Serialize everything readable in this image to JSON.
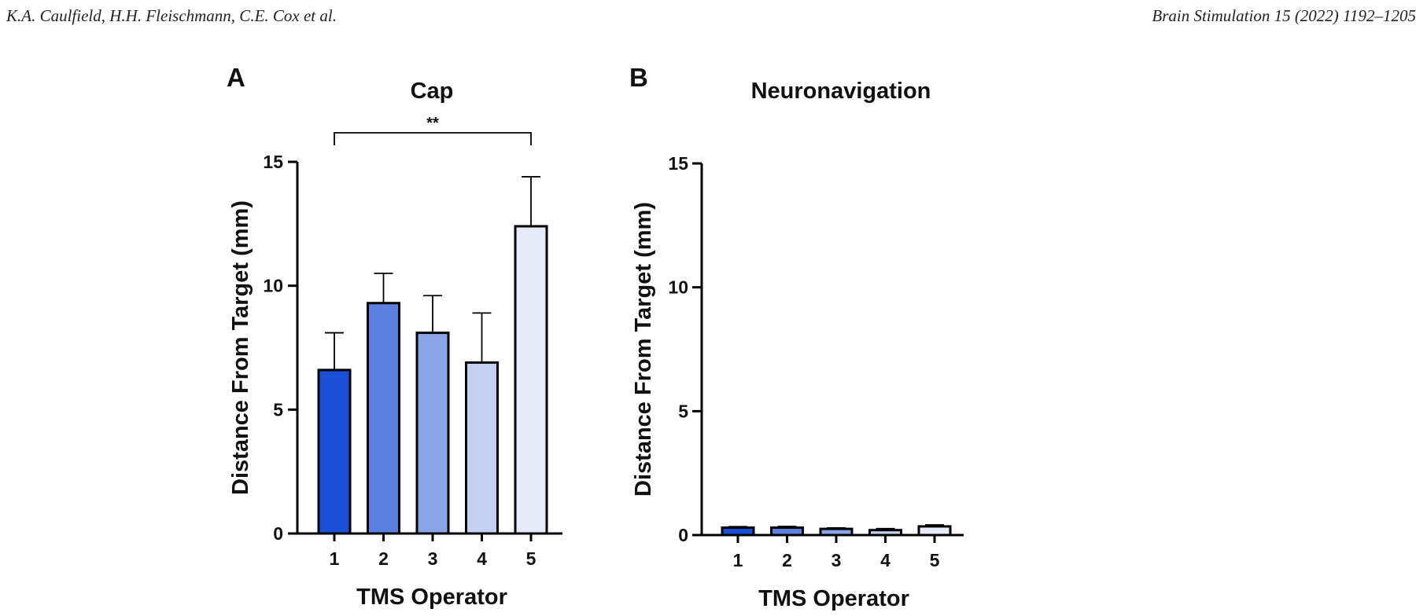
{
  "header": {
    "authors": "K.A. Caulfield, H.H. Fleischmann, C.E. Cox et al.",
    "journal": "Brain Stimulation 15 (2022) 1192–1205"
  },
  "colors": [
    "#1a4fd6",
    "#5b80e0",
    "#8ba4e8",
    "#c3d0f2",
    "#e5ebf9"
  ],
  "chart_data": [
    {
      "type": "bar",
      "panel": "A",
      "title": "Cap",
      "xlabel": "TMS Operator",
      "ylabel": "Distance From Target (mm)",
      "categories": [
        "1",
        "2",
        "3",
        "4",
        "5"
      ],
      "values": [
        6.6,
        9.3,
        8.1,
        6.9,
        12.4
      ],
      "errors": [
        1.5,
        1.2,
        1.5,
        2.0,
        2.0
      ],
      "ylim": [
        0,
        15
      ],
      "yticks": [
        0,
        5,
        10,
        15
      ],
      "significance": {
        "from": "1",
        "to": "5",
        "label": "**"
      }
    },
    {
      "type": "bar",
      "panel": "B",
      "title": "Neuronavigation",
      "xlabel": "TMS Operator",
      "ylabel": "Distance From Target (mm)",
      "categories": [
        "1",
        "2",
        "3",
        "4",
        "5"
      ],
      "values": [
        0.3,
        0.3,
        0.25,
        0.2,
        0.35
      ],
      "errors": [
        0.04,
        0.05,
        0.04,
        0.06,
        0.06
      ],
      "ylim": [
        0,
        15
      ],
      "yticks": [
        0,
        5,
        10,
        15
      ]
    }
  ]
}
